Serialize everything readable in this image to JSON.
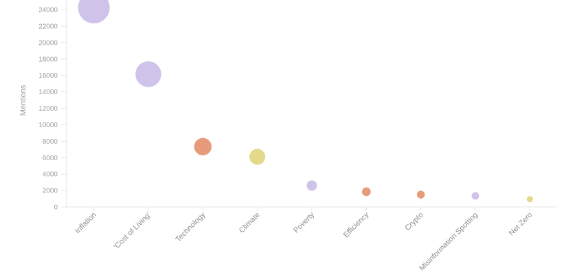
{
  "chart_data": {
    "type": "scatter",
    "variant": "bubble",
    "title": "",
    "xlabel": "",
    "ylabel": "Mentions",
    "categories": [
      "Inflation",
      "'Cost of Living'",
      "Technology",
      "Climate",
      "Poverty",
      "Efficiency",
      "Crypto",
      "Misinformation Spotting",
      "Net Zero"
    ],
    "values": [
      24250,
      16150,
      7330,
      6100,
      2600,
      1850,
      1500,
      1350,
      950
    ],
    "point_colors": [
      "#cfc3e9",
      "#cfc3e9",
      "#e79b7b",
      "#e4d98b",
      "#cfc3e9",
      "#e79b7b",
      "#e79b7b",
      "#cfc3e9",
      "#e4d98b"
    ],
    "y_ticks": [
      0,
      2000,
      4000,
      6000,
      8000,
      10000,
      12000,
      14000,
      16000,
      18000,
      20000,
      22000,
      24000
    ],
    "ylim": [
      0,
      25200
    ],
    "grid": false,
    "legend": false,
    "x_label_rotation_deg": -45,
    "size_scale": "radius_px = 0.148 * sqrt(value)",
    "colors": {
      "axis": "#e4e4e4",
      "y_tick_label": "#9b9b9b",
      "x_tick_label": "#8c8c8c",
      "y_axis_title": "#999999",
      "background": "#ffffff"
    }
  }
}
